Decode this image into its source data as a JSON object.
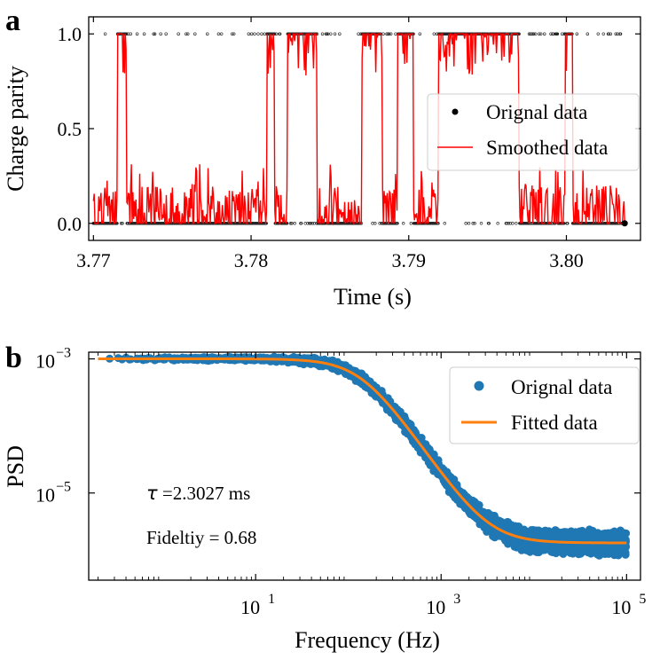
{
  "chart_data": [
    {
      "panel_label": "a",
      "type": "line",
      "title": "",
      "xlabel": "Time (s)",
      "ylabel": "Charge parity",
      "xlim": [
        3.7697,
        3.8047
      ],
      "ylim": [
        -0.09,
        1.09
      ],
      "xticks": [
        3.77,
        3.78,
        3.79,
        3.8
      ],
      "xtick_labels": [
        "3.77",
        "3.78",
        "3.79",
        "3.80"
      ],
      "yticks": [
        0.0,
        0.5,
        1.0
      ],
      "ytick_labels": [
        "0.0",
        "0.5",
        "1.0"
      ],
      "grid": false,
      "legend_position": "center-right",
      "series": [
        {
          "name": "Orignal data",
          "kind": "scatter",
          "color": "#000000",
          "x_range": [
            3.77,
            3.8037
          ],
          "description_values": [
            0,
            1
          ]
        },
        {
          "name": "Smoothed data",
          "kind": "line",
          "color": "#ff0000",
          "x_range": [
            3.77,
            3.8037
          ],
          "high_segments": [
            [
              3.7715,
              3.7721
            ],
            [
              3.781,
              3.7815
            ],
            [
              3.7823,
              3.7842
            ],
            [
              3.787,
              3.7883
            ],
            [
              3.7893,
              3.7903
            ],
            [
              3.7919,
              3.797
            ],
            [
              3.7999,
              3.8004
            ]
          ],
          "low_level": 0.05,
          "high_level": 0.95
        }
      ]
    },
    {
      "panel_label": "b",
      "type": "scatter",
      "title": "",
      "xlabel": "Frequency (Hz)",
      "ylabel": "PSD",
      "xscale": "log",
      "yscale": "log",
      "xlim_log10": [
        -0.8,
        5.15
      ],
      "ylim_log10": [
        -6.3,
        -2.9
      ],
      "xticks_log10": [
        1,
        3,
        5
      ],
      "xtick_labels": [
        {
          "base": "10",
          "exp": "1"
        },
        {
          "base": "10",
          "exp": "3"
        },
        {
          "base": "10",
          "exp": "5"
        }
      ],
      "yticks_log10": [
        -3,
        -5
      ],
      "ytick_labels": [
        {
          "base": "10",
          "exp": "−3"
        },
        {
          "base": "10",
          "exp": "−5"
        }
      ],
      "grid": false,
      "legend_position": "top-right",
      "annotations": [
        {
          "symbol": "τ",
          "text": " =2.3027 ms"
        },
        {
          "text": "Fideltiy = 0.68"
        }
      ],
      "series": [
        {
          "name": "Orignal data",
          "kind": "scatter",
          "color": "#1f77b4",
          "x_range": [
            0.2,
            100000
          ],
          "model": "lorentzian",
          "plateau": 0.001,
          "corner_frequency_hz": 138.2,
          "floor": 1.8e-06,
          "scatter_spread_decades": 0.2
        },
        {
          "name": "Fitted data",
          "kind": "line",
          "color": "#ff7f0e",
          "x_range": [
            0.2,
            100000
          ],
          "model": "lorentzian",
          "plateau": 0.001,
          "corner_frequency_hz": 138.2,
          "floor": 1.8e-06
        }
      ]
    }
  ]
}
